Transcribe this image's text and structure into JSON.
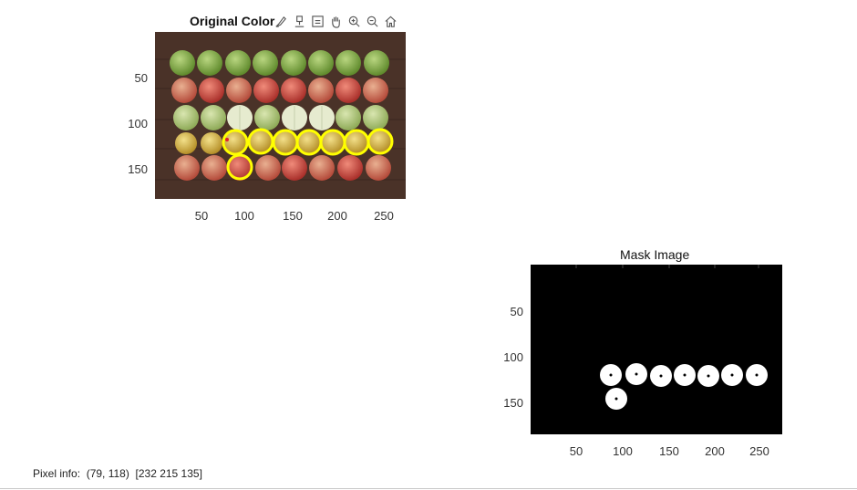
{
  "colors": {
    "background": "#ffffff",
    "image_wood": "#4a3228",
    "green_apple": "#7fa845",
    "red_apple": "#c9473c",
    "yellow_apple": "#d7b93a",
    "boundary": "#ffff00",
    "mask_bg": "#000000",
    "mask_fg": "#ffffff"
  },
  "toolbar": {
    "icons": [
      "brush-icon",
      "data-tip-icon",
      "legend-icon",
      "pan-hand-icon",
      "zoom-in-icon",
      "zoom-out-icon",
      "home-icon"
    ]
  },
  "original": {
    "title": "Original Color",
    "yticks": [
      "50",
      "100",
      "150"
    ],
    "xticks": [
      "50",
      "100",
      "150",
      "200",
      "250"
    ]
  },
  "mask": {
    "title": "Mask Image",
    "yticks": [
      "50",
      "100",
      "150"
    ],
    "xticks": [
      "50",
      "100",
      "150",
      "200",
      "250"
    ]
  },
  "status": {
    "pixel_info_label": "Pixel info:",
    "coords": "(79, 118)",
    "rgb": "[232 215 135]"
  }
}
